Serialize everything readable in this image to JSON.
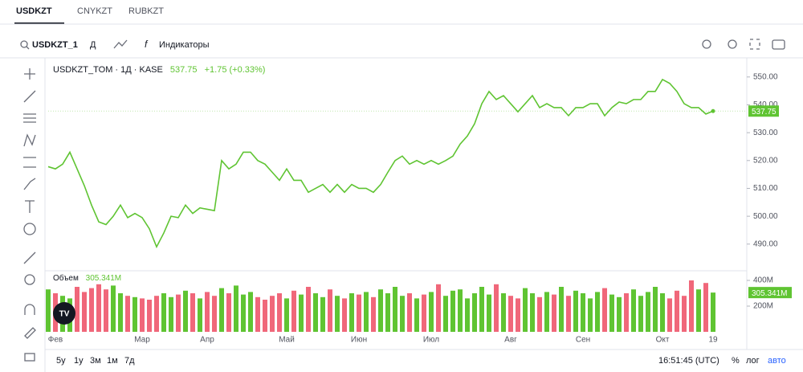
{
  "tabs": [
    "USDKZT",
    "CNYKZT",
    "RUBKZT"
  ],
  "toolbar": {
    "symbol": "USDKZT_1",
    "interval": "Д",
    "indicators": "Индикаторы"
  },
  "chart_data": [
    {
      "type": "line",
      "title": "USDKZT_TOM · 1Д · KASE",
      "change": "+1.75 (+0.33%)",
      "categories": [
        null,
        "Фев",
        null,
        null,
        null,
        null,
        null,
        null,
        null,
        null,
        null,
        null,
        null,
        "Мар",
        null,
        null,
        null,
        null,
        null,
        null,
        null,
        null,
        "Апр",
        null,
        null,
        null,
        null,
        null,
        null,
        null,
        null,
        null,
        null,
        "Май",
        null,
        null,
        null,
        null,
        null,
        null,
        null,
        null,
        null,
        "Июн",
        null,
        null,
        null,
        null,
        null,
        null,
        null,
        null,
        null,
        "Июл",
        null,
        null,
        null,
        null,
        null,
        null,
        null,
        null,
        null,
        null,
        "Авг",
        null,
        null,
        null,
        null,
        null,
        null,
        null,
        null,
        null,
        "Сен",
        null,
        null,
        null,
        null,
        null,
        null,
        null,
        null,
        null,
        null,
        "Окт",
        null,
        null,
        null,
        null,
        null,
        null,
        "19"
      ],
      "series": [
        {
          "color": "#5fc432",
          "values": [
            517.8,
            517,
            518.7,
            523,
            517,
            511,
            504,
            498,
            497,
            500,
            504,
            499.5,
            501,
            499.5,
            495.5,
            489,
            494,
            500,
            499.5,
            504,
            501,
            503,
            502.5,
            502,
            520,
            517,
            518.7,
            523,
            523,
            520,
            518.7,
            515.8,
            512.9,
            517,
            512.9,
            512.9,
            508.6,
            510,
            511.4,
            508.6,
            511.4,
            508.6,
            511.4,
            510,
            510,
            508.6,
            511.4,
            515.8,
            520,
            521.6,
            518.7,
            520,
            518.7,
            520,
            518.7,
            520,
            521.6,
            525.9,
            528.8,
            533.2,
            540.4,
            544.8,
            541.9,
            543.3,
            540.4,
            537.5,
            540.4,
            543.3,
            539,
            540.4,
            539,
            539,
            536.1,
            539,
            539,
            540.4,
            540.4,
            536.1,
            539,
            541,
            540.4,
            541.9,
            541.9,
            544.8,
            544.8,
            549.1,
            547.7,
            544.8,
            540.4,
            539,
            539,
            536.7,
            537.75
          ]
        }
      ],
      "ylim": [
        481,
        556
      ],
      "yticks": [
        {
          "value": 490,
          "label": "490.00"
        },
        {
          "value": 500,
          "label": "500.00"
        },
        {
          "value": 510,
          "label": "510.00"
        },
        {
          "value": 520,
          "label": "520.00"
        },
        {
          "value": 530,
          "label": "530.00"
        },
        {
          "value": 540,
          "label": "540.00"
        },
        {
          "value": 550,
          "label": "550.00"
        }
      ],
      "grid": false
    },
    {
      "type": "bar",
      "title": "Объем",
      "up_color": "#5fc432",
      "down_color": "#f0677a",
      "series": [
        {
          "values": [
            330,
            300,
            280,
            260,
            350,
            310,
            340,
            370,
            330,
            360,
            300,
            280,
            270,
            260,
            250,
            280,
            300,
            270,
            290,
            320,
            300,
            260,
            310,
            280,
            340,
            300,
            360,
            290,
            310,
            270,
            250,
            280,
            300,
            260,
            320,
            290,
            350,
            300,
            270,
            330,
            280,
            260,
            300,
            290,
            310,
            270,
            330,
            300,
            350,
            280,
            300,
            260,
            290,
            310,
            370,
            280,
            320,
            330,
            260,
            300,
            350,
            290,
            370,
            300,
            280,
            260,
            340,
            300,
            270,
            310,
            290,
            350,
            280,
            320,
            300,
            260,
            310,
            340,
            290,
            270,
            300,
            330,
            280,
            310,
            350,
            300,
            260,
            320,
            280,
            400,
            330,
            380,
            305.341
          ],
          "value_labels": [
            null,
            null,
            null,
            null,
            null,
            null,
            null,
            null,
            null,
            null,
            null,
            null,
            null,
            null,
            null,
            null,
            null,
            null,
            null,
            null,
            null,
            null,
            null,
            null,
            null,
            null,
            null,
            null,
            null,
            null,
            null,
            null,
            null,
            null,
            null,
            null,
            null,
            null,
            null,
            null,
            null,
            null,
            null,
            null,
            null,
            null,
            null,
            null,
            null,
            null,
            null,
            null,
            null,
            null,
            null,
            null,
            null,
            null,
            null,
            null,
            null,
            null,
            null,
            null,
            null,
            null,
            null,
            null,
            null,
            null,
            null,
            null,
            null,
            null,
            null,
            null,
            null,
            null,
            null,
            null,
            null,
            null,
            null,
            null,
            null,
            null,
            null,
            null,
            null,
            null,
            null,
            null,
            "305.341M"
          ]
        }
      ],
      "ylim": [
        0,
        460
      ],
      "yticks": [
        {
          "value": 200,
          "label": "200M"
        },
        {
          "value": 400,
          "label": "400M"
        }
      ]
    }
  ],
  "range_buttons": [
    "5у",
    "1у",
    "3м",
    "1м",
    "7д"
  ],
  "time": "16:51:45 (UTC)",
  "scale_buttons": [
    "%",
    "лог",
    "авто"
  ]
}
